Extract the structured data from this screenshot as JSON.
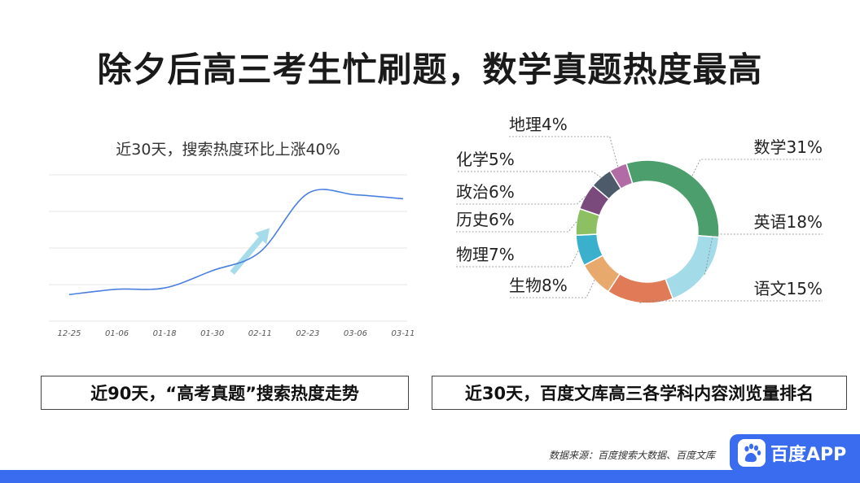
{
  "title": "除夕后高三考生忙刷题，数学真题热度最高",
  "chart_data": [
    {
      "type": "line",
      "title": "近30天，搜索热度环比上涨40%",
      "categories": [
        "12-25",
        "01-06",
        "01-18",
        "01-30",
        "02-11",
        "02-23",
        "03-06",
        "03-11"
      ],
      "series": [
        {
          "values": [
            20,
            24,
            25,
            38,
            52,
            96,
            95,
            92
          ]
        }
      ],
      "ylim": [
        0,
        110
      ],
      "grid": true,
      "annotation": "arrow-up",
      "colors": {
        "line": "#4a7fe0",
        "arrow": "#a6dcea",
        "grid": "#e6e6e6"
      },
      "caption": "近90天，“高考真题”搜索热度走势"
    },
    {
      "type": "pie",
      "donut": true,
      "labels": [
        "数学",
        "英语",
        "语文",
        "生物",
        "物理",
        "历史",
        "政治",
        "化学",
        "地理"
      ],
      "values": [
        31,
        18,
        15,
        8,
        7,
        6,
        6,
        5,
        4
      ],
      "label_texts": [
        "数学31%",
        "英语18%",
        "语文15%",
        "生物8%",
        "物理7%",
        "历史6%",
        "政治6%",
        "化学5%",
        "地理4%"
      ],
      "colors": [
        "#4d9e6d",
        "#a4dbe9",
        "#a4dbe9",
        "#e07a57",
        "#e8a96d",
        "#3bb0cc",
        "#8cc062",
        "#7a4a7d",
        "#4c5a6a",
        "#b16ca6"
      ],
      "slice_colors": [
        "#4d9e6d",
        "#a4dbe9",
        "#a4dbe9",
        "#e07a57",
        "#e8a96d",
        "#3bb0cc",
        "#8cc062",
        "#7a4a7d",
        "#4c5a6a",
        "#b16ca6"
      ],
      "caption": "近30天，百度文库高三各学科内容浏览量排名"
    }
  ],
  "footer": {
    "source": "数据来源：百度搜索大数据、百度文库",
    "logo_text": "百度APP",
    "logo_icon": "baidu-paw-icon"
  }
}
